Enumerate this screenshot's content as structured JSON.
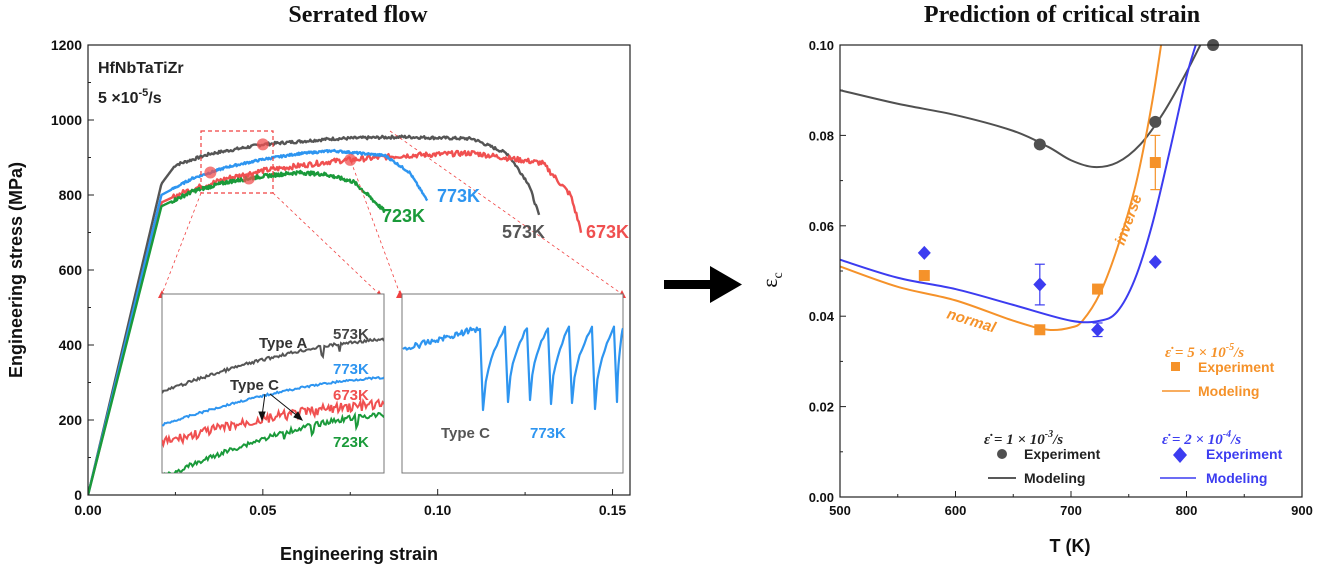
{
  "chart_data": [
    {
      "type": "line",
      "title": "Serrated flow",
      "xlabel": "Engineering strain",
      "ylabel": "Engineering stress (MPa)",
      "xlim": [
        0.0,
        0.155
      ],
      "ylim": [
        0,
        1200
      ],
      "xticks": [
        "0.00",
        "0.05",
        "0.10",
        "0.15"
      ],
      "yticks": [
        "0",
        "200",
        "400",
        "600",
        "800",
        "1000",
        "1200"
      ],
      "annotations": {
        "material": "HfNbTaTiZr",
        "rate_prefix": "5 ×10",
        "rate_exp": "-5",
        "rate_suffix": "/s"
      },
      "series": [
        {
          "name": "573K",
          "color": "#555555",
          "x": [
            0,
            0.021,
            0.025,
            0.035,
            0.05,
            0.07,
            0.09,
            0.11,
            0.12,
            0.126,
            0.129
          ],
          "y": [
            0,
            830,
            880,
            910,
            935,
            950,
            955,
            950,
            910,
            830,
            745
          ]
        },
        {
          "name": "673K",
          "color": "#f05050",
          "x": [
            0,
            0.021,
            0.028,
            0.04,
            0.05,
            0.07,
            0.09,
            0.11,
            0.13,
            0.138,
            0.141
          ],
          "y": [
            0,
            780,
            810,
            845,
            865,
            890,
            905,
            912,
            885,
            800,
            705
          ]
        },
        {
          "name": "773K",
          "color": "#2e95f0",
          "x": [
            0,
            0.021,
            0.03,
            0.04,
            0.05,
            0.06,
            0.07,
            0.085,
            0.092,
            0.097
          ],
          "y": [
            0,
            800,
            845,
            875,
            895,
            910,
            918,
            905,
            860,
            785
          ]
        },
        {
          "name": "723K",
          "color": "#1a9a3a",
          "x": [
            0,
            0.021,
            0.03,
            0.04,
            0.05,
            0.06,
            0.068,
            0.076,
            0.08,
            0.085
          ],
          "y": [
            0,
            770,
            810,
            835,
            850,
            860,
            855,
            835,
            800,
            755
          ]
        }
      ],
      "inset_left": {
        "labels": {
          "type_a": "Type A",
          "type_c": "Type C"
        },
        "series_labels": [
          "573K",
          "773K",
          "673K",
          "723K"
        ]
      },
      "inset_right": {
        "labels": {
          "type_c": "Type C",
          "temp": "773K"
        }
      }
    },
    {
      "type": "scatter",
      "title": "Prediction of critical strain",
      "xlabel": "T (K)",
      "ylabel": "ε",
      "ylabel_sub": "c",
      "xlim": [
        500,
        900
      ],
      "ylim": [
        0.0,
        0.1
      ],
      "xticks": [
        "500",
        "600",
        "700",
        "800",
        "900"
      ],
      "yticks": [
        "0.00",
        "0.02",
        "0.04",
        "0.06",
        "0.08",
        "0.10"
      ],
      "series": [
        {
          "name": "1 × 10⁻³/s",
          "rate_prefix": "ε̇ = 1 × 10",
          "rate_exp": "-3",
          "rate_suffix": "/s",
          "color": "#505050",
          "marker": "circle",
          "experiment_label": "Experiment",
          "modeling_label": "Modeling",
          "experiment": [
            {
              "x": 673,
              "y": 0.078
            },
            {
              "x": 773,
              "y": 0.083
            },
            {
              "x": 823,
              "y": 0.1
            }
          ],
          "model": {
            "x": [
              500,
              550,
              600,
              650,
              680,
              700,
              720,
              740,
              760,
              780,
              800,
              812
            ],
            "y": [
              0.09,
              0.087,
              0.0845,
              0.081,
              0.0775,
              0.0745,
              0.073,
              0.074,
              0.078,
              0.085,
              0.094,
              0.1
            ]
          }
        },
        {
          "name": "5 × 10⁻⁵/s",
          "rate_prefix": "ε̇ = 5 × 10",
          "rate_exp": "-5",
          "rate_suffix": "/s",
          "color": "#f5922a",
          "marker": "square",
          "experiment_label": "Experiment",
          "modeling_label": "Modeling",
          "experiment": [
            {
              "x": 573,
              "y": 0.049,
              "err": 0.0
            },
            {
              "x": 673,
              "y": 0.037,
              "err": 0.0
            },
            {
              "x": 723,
              "y": 0.046,
              "err": 0.0
            },
            {
              "x": 773,
              "y": 0.074,
              "err": 0.006
            }
          ],
          "model": {
            "x": [
              500,
              550,
              600,
              650,
              680,
              700,
              710,
              725,
              740,
              755,
              765,
              772,
              778
            ],
            "y": [
              0.051,
              0.0465,
              0.0435,
              0.039,
              0.037,
              0.0375,
              0.039,
              0.045,
              0.055,
              0.068,
              0.08,
              0.09,
              0.1
            ]
          },
          "curve_labels": {
            "normal": "normal",
            "inverse": "inverse"
          }
        },
        {
          "name": "2 × 10⁻⁴/s",
          "rate_prefix": "ε̇ = 2 × 10",
          "rate_exp": "-4",
          "rate_suffix": "/s",
          "color": "#3c3cf0",
          "marker": "diamond",
          "experiment_label": "Experiment",
          "modeling_label": "Modeling",
          "experiment": [
            {
              "x": 573,
              "y": 0.054,
              "err": 0.0
            },
            {
              "x": 673,
              "y": 0.047,
              "err": 0.0045
            },
            {
              "x": 723,
              "y": 0.037,
              "err": 0.0015
            },
            {
              "x": 773,
              "y": 0.052,
              "err": 0.0
            }
          ],
          "model": {
            "x": [
              500,
              550,
              600,
              650,
              700,
              725,
              740,
              755,
              770,
              785,
              800,
              808
            ],
            "y": [
              0.0525,
              0.0485,
              0.046,
              0.0425,
              0.039,
              0.039,
              0.041,
              0.048,
              0.06,
              0.076,
              0.093,
              0.1
            ]
          }
        }
      ]
    }
  ],
  "arrow_icon": "right-arrow-icon"
}
